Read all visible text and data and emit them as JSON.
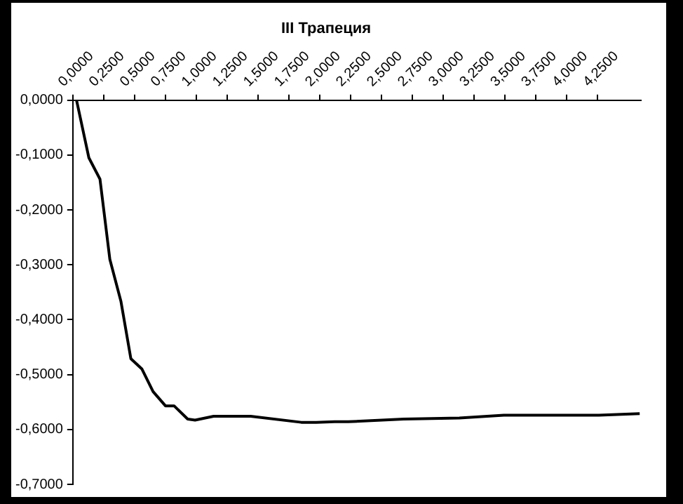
{
  "chart_data": {
    "type": "line",
    "title": "III Трапеция",
    "x": [
      0.03,
      0.13,
      0.22,
      0.3,
      0.39,
      0.47,
      0.56,
      0.65,
      0.75,
      0.82,
      0.93,
      0.99,
      1.14,
      1.44,
      1.85,
      1.97,
      2.12,
      2.23,
      2.68,
      3.13,
      3.49,
      4.26,
      4.59
    ],
    "series": [
      {
        "color": "#000000",
        "values": [
          0,
          -0.105,
          -0.144,
          -0.29,
          -0.367,
          -0.471,
          -0.49,
          -0.531,
          -0.557,
          -0.557,
          -0.581,
          -0.583,
          -0.576,
          -0.576,
          -0.587,
          -0.587,
          -0.586,
          -0.586,
          -0.581,
          -0.579,
          -0.574,
          -0.574,
          -0.571
        ]
      }
    ],
    "xlim": [
      0,
      4.6
    ],
    "xticks": [
      {
        "value": 0,
        "label": "0,0000"
      },
      {
        "value": 0.25,
        "label": "0,2500"
      },
      {
        "value": 0.5,
        "label": "0,5000"
      },
      {
        "value": 0.75,
        "label": "0,7500"
      },
      {
        "value": 1,
        "label": "1,0000"
      },
      {
        "value": 1.25,
        "label": "1,2500"
      },
      {
        "value": 1.5,
        "label": "1,5000"
      },
      {
        "value": 1.75,
        "label": "1,7500"
      },
      {
        "value": 2,
        "label": "2,0000"
      },
      {
        "value": 2.25,
        "label": "2,2500"
      },
      {
        "value": 2.5,
        "label": "2,5000"
      },
      {
        "value": 2.75,
        "label": "2,7500"
      },
      {
        "value": 3,
        "label": "3,0000"
      },
      {
        "value": 3.25,
        "label": "3,2500"
      },
      {
        "value": 3.5,
        "label": "3,5000"
      },
      {
        "value": 3.75,
        "label": "3,7500"
      },
      {
        "value": 4,
        "label": "4,0000"
      },
      {
        "value": 4.25,
        "label": "4,2500"
      }
    ],
    "ylim": [
      -0.7,
      0
    ],
    "yticks": [
      {
        "value": 0,
        "label": "0,0000"
      },
      {
        "value": -0.1,
        "label": "-0,1000"
      },
      {
        "value": -0.2,
        "label": "-0,2000"
      },
      {
        "value": -0.3,
        "label": "-0,3000"
      },
      {
        "value": -0.4,
        "label": "-0,4000"
      },
      {
        "value": -0.5,
        "label": "-0,5000"
      },
      {
        "value": -0.6,
        "label": "-0,6000"
      },
      {
        "value": -0.7,
        "label": "-0,7000"
      }
    ],
    "grid": false,
    "legend": false,
    "marker": "none",
    "line_style": "solid"
  }
}
